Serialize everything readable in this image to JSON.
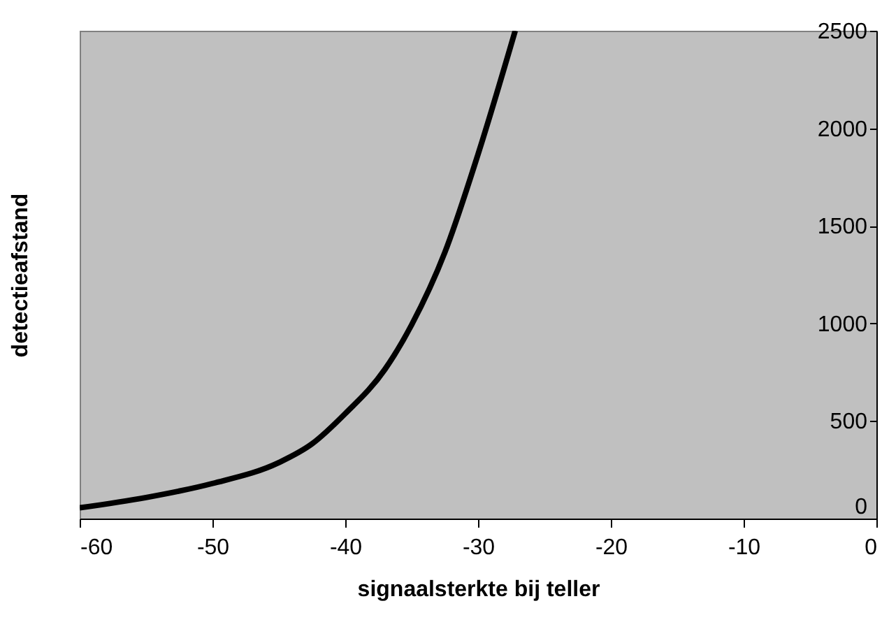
{
  "chart_data": {
    "type": "line",
    "xlabel": "signaalsterkte bij teller",
    "ylabel": "detectieafstand",
    "x": [
      -60,
      -55,
      -50,
      -45,
      -42.5,
      -40,
      -37,
      -35,
      -32.5,
      -30,
      -27.2
    ],
    "series": [
      {
        "color": "#000000",
        "values": [
          55,
          108,
          180,
          287,
          383,
          538,
          766,
          993,
          1364,
          1867,
          2500
        ]
      }
    ],
    "xlim": [
      -60,
      0
    ],
    "xticks": [
      -60,
      -50,
      -40,
      -30,
      -20,
      -10,
      0
    ],
    "ylim": [
      0,
      2500
    ],
    "yticks": [
      0,
      500,
      1000,
      1500,
      2000,
      2500
    ],
    "grid": false,
    "marker": "none",
    "line_style": "solid"
  }
}
